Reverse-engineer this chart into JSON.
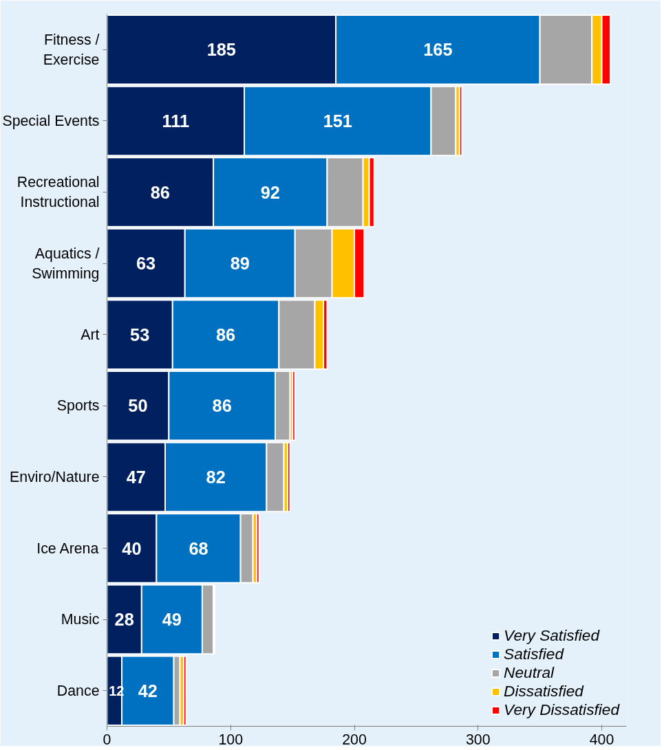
{
  "chart_data": {
    "type": "bar",
    "orientation": "horizontal",
    "stacked": true,
    "categories": [
      "Fitness /\nExercise",
      "Special Events",
      "Recreational\nInstructional",
      "Aquatics /\nSwimming",
      "Art",
      "Sports",
      "Enviro/Nature",
      "Ice Arena",
      "Music",
      "Dance"
    ],
    "series": [
      {
        "name": "Very Satisfied",
        "color": "#002060",
        "values": [
          185,
          111,
          86,
          63,
          53,
          50,
          47,
          40,
          28,
          12
        ],
        "value_labels": [
          "185",
          "111",
          "86",
          "63",
          "53",
          "50",
          "47",
          "40",
          "28",
          "12"
        ]
      },
      {
        "name": "Satisfied",
        "color": "#0070c0",
        "values": [
          165,
          151,
          92,
          89,
          86,
          86,
          82,
          68,
          49,
          42
        ],
        "value_labels": [
          "165",
          "151",
          "92",
          "89",
          "86",
          "86",
          "82",
          "68",
          "49",
          "42"
        ]
      },
      {
        "name": "Neutral",
        "color": "#a6a6a6",
        "values": [
          42,
          20,
          29,
          30,
          29,
          12,
          14,
          10,
          9,
          5
        ]
      },
      {
        "name": "Dissatisfied",
        "color": "#ffc000",
        "values": [
          8,
          3,
          5,
          18,
          7,
          2,
          3,
          3,
          1,
          3
        ]
      },
      {
        "name": "Very Dissatisfied",
        "color": "#ff0000",
        "values": [
          7,
          2,
          4,
          8,
          3,
          2,
          2,
          2,
          null,
          2
        ]
      }
    ],
    "xlim": [
      0,
      420
    ],
    "xticks": [
      0,
      100,
      200,
      300,
      400
    ],
    "grid": false,
    "legend": "bottom right"
  }
}
